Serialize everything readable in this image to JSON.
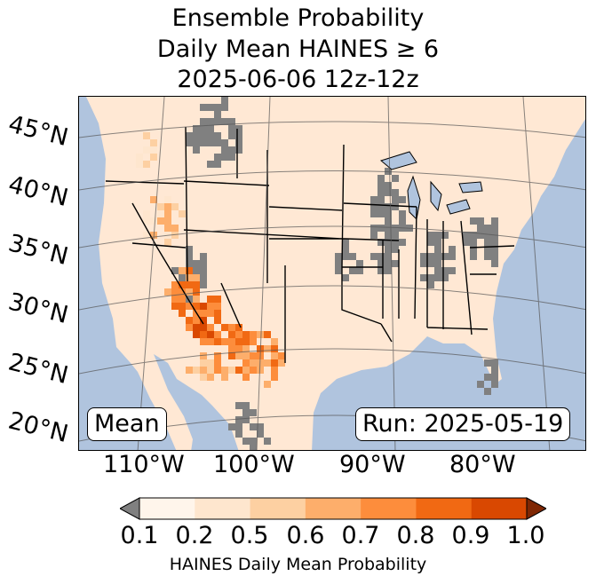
{
  "title": {
    "line1": "Ensemble Probability",
    "line2": "Daily Mean HAINES ≥ 6",
    "line3": "2025-06-06 12z-12z"
  },
  "map": {
    "latitude_labels": [
      "45°N",
      "40°N",
      "35°N",
      "30°N",
      "25°N",
      "20°N"
    ],
    "longitude_labels": [
      "110°W",
      "100°W",
      "90°W",
      "80°W"
    ],
    "ocean_color": "#b0c4de",
    "land_base_color": "#ffe8d4",
    "masked_color": "#808080",
    "stat_box": "Mean",
    "run_box": "Run: 2025-05-19"
  },
  "colorbar": {
    "label": "HAINES Daily Mean Probability",
    "ticks": [
      "0.1",
      "0.2",
      "0.5",
      "0.6",
      "0.7",
      "0.8",
      "0.9",
      "1.0"
    ],
    "colors": [
      "#fff5eb",
      "#fee6ce",
      "#fdd0a2",
      "#fdae6b",
      "#fd8d3c",
      "#f16913",
      "#d94801",
      "#a63603"
    ],
    "under_color": "#808080",
    "over_color": "#7f2704"
  }
}
